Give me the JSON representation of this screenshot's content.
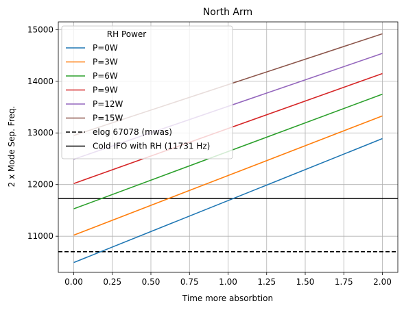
{
  "chart_data": {
    "type": "line",
    "title": "North Arm",
    "xlabel": "Time more absorbtion",
    "ylabel": "2 x Mode Sep. Freq.",
    "xlim": [
      -0.1,
      2.1
    ],
    "ylim": [
      10300,
      15150
    ],
    "grid": true,
    "x_ticks": [
      0.0,
      0.25,
      0.5,
      0.75,
      1.0,
      1.25,
      1.5,
      1.75,
      2.0
    ],
    "x_tick_labels": [
      "0.00",
      "0.25",
      "0.50",
      "0.75",
      "1.00",
      "1.25",
      "1.50",
      "1.75",
      "2.00"
    ],
    "y_ticks": [
      11000,
      12000,
      13000,
      14000,
      15000
    ],
    "y_tick_labels": [
      "11000",
      "12000",
      "13000",
      "14000",
      "15000"
    ],
    "legend": {
      "title": "RH Power",
      "placement": "upper-left"
    },
    "series": [
      {
        "name": "P=0W",
        "color": "#1f77b4",
        "x": [
          0,
          2
        ],
        "y": [
          10490,
          12890
        ]
      },
      {
        "name": "P=3W",
        "color": "#ff7f0e",
        "x": [
          0,
          2
        ],
        "y": [
          11020,
          13330
        ]
      },
      {
        "name": "P=6W",
        "color": "#2ca02c",
        "x": [
          0,
          2
        ],
        "y": [
          11530,
          13750
        ]
      },
      {
        "name": "P=9W",
        "color": "#d62728",
        "x": [
          0,
          2
        ],
        "y": [
          12020,
          14150
        ]
      },
      {
        "name": "P=12W",
        "color": "#9467bd",
        "x": [
          0,
          2
        ],
        "y": [
          12490,
          14540
        ]
      },
      {
        "name": "P=15W",
        "color": "#8c564b",
        "x": [
          0,
          2
        ],
        "y": [
          12950,
          14920
        ]
      }
    ],
    "hlines": [
      {
        "name": "elog 67078 (mwas)",
        "y": 10700,
        "color": "#000000",
        "style": "dashed"
      },
      {
        "name": "Cold IFO with RH (11731 Hz)",
        "y": 11731,
        "color": "#000000",
        "style": "solid"
      }
    ]
  }
}
